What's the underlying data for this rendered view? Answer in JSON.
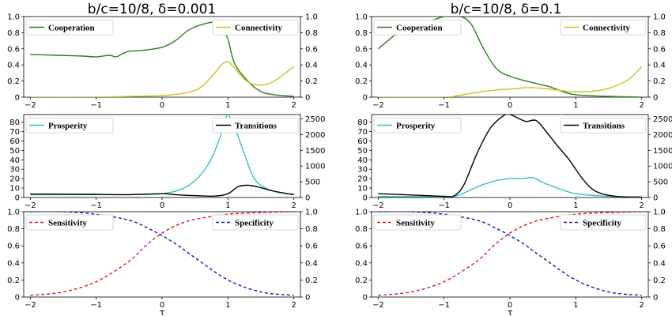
{
  "chart_data": [
    {
      "type": "line",
      "title": "b/c=10/8, δ=0.001",
      "xlim": [
        -2.1,
        2.1
      ],
      "x_ticks": [
        "−2",
        "−1",
        "0",
        "1",
        "2"
      ],
      "panels": [
        {
          "left_ylim": [
            0,
            1.0
          ],
          "right_ylim": [
            0,
            1.0
          ],
          "left_ticks": [
            "0",
            "0.2",
            "0.4",
            "0.6",
            "0.8",
            "1.0"
          ],
          "right_ticks": [
            "0",
            "0.2",
            "0.4",
            "0.6",
            "0.8",
            "1.0"
          ],
          "series": [
            {
              "name": "Cooperation",
              "axis": "left",
              "color": "#2a7f1e",
              "dash": false,
              "x": [
                -2,
                -1.6,
                -1.2,
                -1.0,
                -0.8,
                -0.7,
                -0.6,
                -0.5,
                -0.3,
                0.0,
                0.2,
                0.4,
                0.6,
                0.8,
                0.9,
                1.0,
                1.1,
                1.3,
                1.5,
                1.7,
                2.0
              ],
              "y": [
                0.53,
                0.52,
                0.51,
                0.5,
                0.52,
                0.5,
                0.54,
                0.57,
                0.58,
                0.62,
                0.7,
                0.83,
                0.9,
                0.93,
                0.88,
                0.72,
                0.42,
                0.2,
                0.07,
                0.03,
                0.01
              ]
            },
            {
              "name": "Connectivity",
              "axis": "right",
              "color": "#c9c21c",
              "dash": false,
              "x": [
                -2,
                -1.0,
                -0.5,
                0.0,
                0.4,
                0.6,
                0.8,
                0.9,
                1.0,
                1.1,
                1.3,
                1.5,
                1.7,
                2.0
              ],
              "y": [
                0.0,
                0.0,
                0.01,
                0.02,
                0.06,
                0.13,
                0.3,
                0.4,
                0.44,
                0.36,
                0.19,
                0.15,
                0.2,
                0.38
              ]
            }
          ],
          "legend": {
            "left": "Cooperation",
            "right": "Connectivity"
          }
        },
        {
          "left_ylim": [
            0,
            88
          ],
          "right_ylim": [
            0,
            2640
          ],
          "left_ticks": [
            "0",
            "10",
            "20",
            "30",
            "40",
            "50",
            "60",
            "70",
            "80"
          ],
          "right_ticks": [
            "0",
            "500",
            "1000",
            "1500",
            "2000",
            "2500"
          ],
          "series": [
            {
              "name": "Prosperity",
              "axis": "left",
              "color": "#2cc3c3",
              "dash": false,
              "x": [
                -2,
                -1,
                -0.5,
                0.0,
                0.3,
                0.5,
                0.7,
                0.85,
                0.95,
                1.0,
                1.1,
                1.25,
                1.4,
                1.6,
                1.8,
                2.0
              ],
              "y": [
                3,
                3,
                3,
                4,
                9,
                18,
                35,
                58,
                80,
                88,
                75,
                46,
                20,
                9,
                5,
                3
              ]
            },
            {
              "name": "Transitions",
              "axis": "right",
              "color": "#000000",
              "dash": false,
              "x": [
                -2,
                -1.0,
                -0.5,
                0.0,
                0.2,
                0.5,
                0.8,
                1.0,
                1.15,
                1.3,
                1.45,
                1.7,
                2.0
              ],
              "y": [
                110,
                100,
                90,
                120,
                90,
                60,
                45,
                120,
                340,
                390,
                340,
                200,
                90
              ]
            }
          ],
          "legend": {
            "left": "Prosperity",
            "right": "Transitions"
          }
        },
        {
          "left_ylim": [
            0,
            1.0
          ],
          "right_ylim": [
            0,
            1.0
          ],
          "left_ticks": [
            "0",
            "0.2",
            "0.4",
            "0.6",
            "0.8",
            "1.0"
          ],
          "right_ticks": [
            "0",
            "0.2",
            "0.4",
            "0.6",
            "0.8",
            "1.0"
          ],
          "series": [
            {
              "name": "Sensitivity",
              "axis": "left",
              "color": "#d62020",
              "dash": true,
              "x": [
                -2,
                -1.5,
                -1.0,
                -0.5,
                -0.25,
                0.0,
                0.25,
                0.5,
                1.0,
                1.5,
                2.0
              ],
              "y": [
                0.02,
                0.06,
                0.18,
                0.42,
                0.6,
                0.75,
                0.85,
                0.91,
                0.97,
                0.99,
                1.0
              ]
            },
            {
              "name": "Specificity",
              "axis": "right",
              "color": "#1a1ab5",
              "dash": true,
              "x": [
                -2,
                -1.5,
                -1.0,
                -0.5,
                -0.25,
                0.0,
                0.25,
                0.5,
                1.0,
                1.5,
                2.0
              ],
              "y": [
                1.0,
                1.0,
                0.97,
                0.9,
                0.82,
                0.72,
                0.6,
                0.46,
                0.2,
                0.06,
                0.02
              ]
            }
          ],
          "legend": {
            "left": "Sensitivity",
            "right": "Specificity"
          },
          "xlabel": "τ"
        }
      ]
    },
    {
      "type": "line",
      "title": "b/c=10/8, δ=0.1",
      "xlim": [
        -2.1,
        2.1
      ],
      "x_ticks": [
        "−2",
        "−1",
        "0",
        "1",
        "2"
      ],
      "panels": [
        {
          "left_ylim": [
            0,
            1.0
          ],
          "right_ylim": [
            0,
            1.0
          ],
          "left_ticks": [
            "0",
            "0.2",
            "0.4",
            "0.6",
            "0.8",
            "1.0"
          ],
          "right_ticks": [
            "0",
            "0.2",
            "0.4",
            "0.6",
            "0.8",
            "1.0"
          ],
          "series": [
            {
              "name": "Cooperation",
              "axis": "left",
              "color": "#2a7f1e",
              "dash": false,
              "x": [
                -2,
                -1.7,
                -1.5,
                -1.2,
                -1.0,
                -0.8,
                -0.6,
                -0.4,
                -0.2,
                0.0,
                0.2,
                0.4,
                0.6,
                0.8,
                1.0,
                1.5,
                2.0
              ],
              "y": [
                0.6,
                0.8,
                0.88,
                0.95,
                1.0,
                1.01,
                0.92,
                0.6,
                0.35,
                0.26,
                0.21,
                0.17,
                0.13,
                0.07,
                0.03,
                0.01,
                0.0
              ]
            },
            {
              "name": "Connectivity",
              "axis": "right",
              "color": "#c9c21c",
              "dash": false,
              "x": [
                -2,
                -1.0,
                -0.8,
                -0.5,
                -0.2,
                0.0,
                0.3,
                0.6,
                0.9,
                1.2,
                1.5,
                1.8,
                2.0
              ],
              "y": [
                0.0,
                0.0,
                0.02,
                0.06,
                0.09,
                0.1,
                0.12,
                0.1,
                0.07,
                0.07,
                0.11,
                0.22,
                0.38
              ]
            }
          ],
          "legend": {
            "left": "Cooperation",
            "right": "Connectivity"
          }
        },
        {
          "left_ylim": [
            0,
            88
          ],
          "right_ylim": [
            0,
            2640
          ],
          "left_ticks": [
            "0",
            "10",
            "20",
            "30",
            "40",
            "50",
            "60",
            "70",
            "80"
          ],
          "right_ticks": [
            "0",
            "500",
            "1000",
            "1500",
            "2000",
            "2500"
          ],
          "series": [
            {
              "name": "Prosperity",
              "axis": "left",
              "color": "#2cc3c3",
              "dash": false,
              "x": [
                -2,
                -1.5,
                -1.0,
                -0.8,
                -0.6,
                -0.4,
                -0.2,
                0.0,
                0.2,
                0.35,
                0.5,
                0.8,
                1.0,
                1.3,
                1.6,
                2.0
              ],
              "y": [
                1,
                1,
                1,
                2,
                8,
                14,
                18,
                20,
                20,
                21,
                16,
                8,
                4,
                2,
                1,
                0.5
              ]
            },
            {
              "name": "Transitions",
              "axis": "right",
              "color": "#000000",
              "dash": false,
              "x": [
                -2,
                -1.5,
                -1.0,
                -0.85,
                -0.7,
                -0.5,
                -0.3,
                -0.1,
                0.0,
                0.15,
                0.25,
                0.4,
                0.55,
                0.7,
                0.9,
                1.1,
                1.3,
                1.6,
                2.0
              ],
              "y": [
                120,
                80,
                40,
                50,
                400,
                1400,
                2200,
                2600,
                2640,
                2500,
                2420,
                2450,
                2100,
                1700,
                1200,
                600,
                200,
                40,
                10
              ]
            }
          ],
          "legend": {
            "left": "Prosperity",
            "right": "Transitions"
          }
        },
        {
          "left_ylim": [
            0,
            1.0
          ],
          "right_ylim": [
            0,
            1.0
          ],
          "left_ticks": [
            "0",
            "0.2",
            "0.4",
            "0.6",
            "0.8",
            "1.0"
          ],
          "right_ticks": [
            "0",
            "0.2",
            "0.4",
            "0.6",
            "0.8",
            "1.0"
          ],
          "series": [
            {
              "name": "Sensitivity",
              "axis": "left",
              "color": "#d62020",
              "dash": true,
              "x": [
                -2,
                -1.5,
                -1.0,
                -0.5,
                -0.25,
                0.0,
                0.25,
                0.5,
                1.0,
                1.5,
                2.0
              ],
              "y": [
                0.02,
                0.06,
                0.18,
                0.42,
                0.6,
                0.75,
                0.85,
                0.91,
                0.97,
                0.99,
                1.0
              ]
            },
            {
              "name": "Specificity",
              "axis": "right",
              "color": "#1a1ab5",
              "dash": true,
              "x": [
                -2,
                -1.5,
                -1.0,
                -0.5,
                -0.25,
                0.0,
                0.25,
                0.5,
                1.0,
                1.5,
                2.0
              ],
              "y": [
                1.0,
                1.0,
                0.97,
                0.9,
                0.82,
                0.72,
                0.6,
                0.46,
                0.2,
                0.06,
                0.02
              ]
            }
          ],
          "legend": {
            "left": "Sensitivity",
            "right": "Specificity"
          },
          "xlabel": "τ"
        }
      ]
    }
  ]
}
